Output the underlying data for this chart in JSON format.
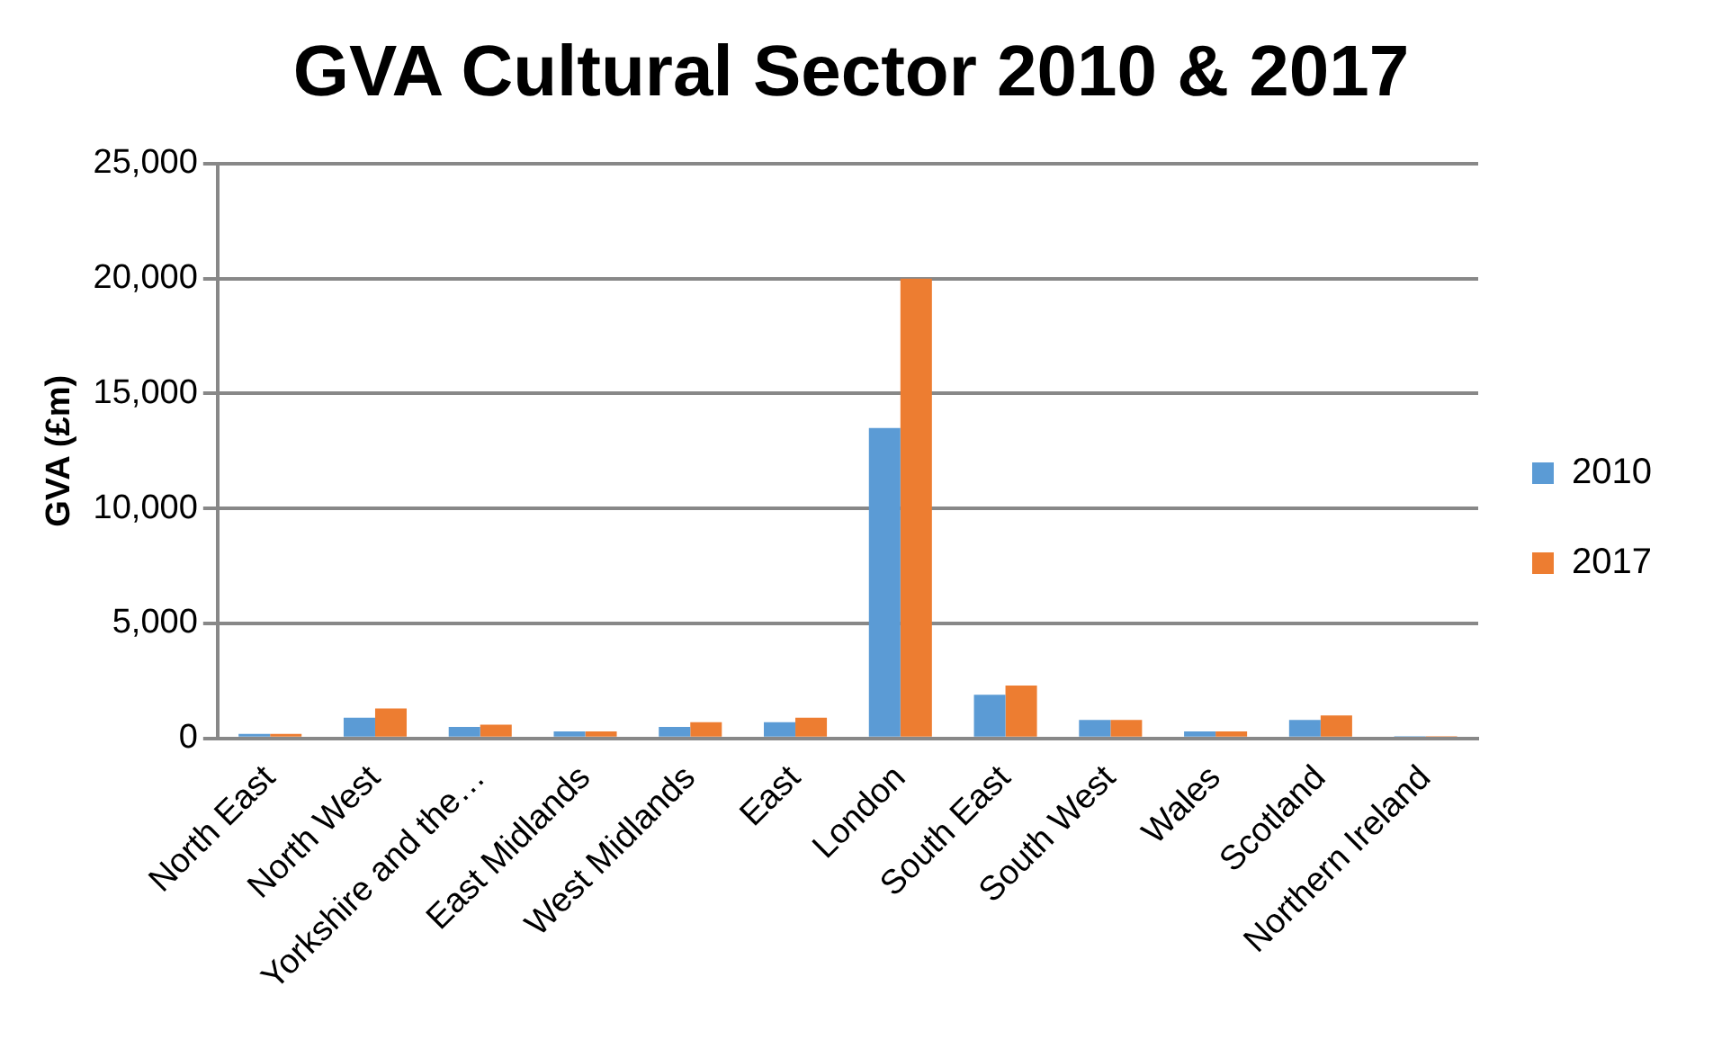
{
  "chart_data": {
    "type": "bar",
    "title": "GVA Cultural Sector 2010 & 2017",
    "ylabel": "GVA (£m)",
    "categories": [
      "North East",
      "North West",
      "Yorkshire and the…",
      "East Midlands",
      "West Midlands",
      "East",
      "London",
      "South East",
      "South West",
      "Wales",
      "Scotland",
      "Northern Ireland"
    ],
    "series": [
      {
        "name": "2010",
        "color": "#5b9bd5",
        "values": [
          200,
          900,
          500,
          300,
          500,
          700,
          13500,
          1900,
          800,
          300,
          800,
          100
        ]
      },
      {
        "name": "2017",
        "color": "#ed7d31",
        "values": [
          200,
          1300,
          600,
          300,
          700,
          900,
          20000,
          2300,
          800,
          300,
          1000,
          100
        ]
      }
    ],
    "ylim": [
      0,
      25000
    ],
    "yticks": [
      {
        "value": 0,
        "label": "0"
      },
      {
        "value": 5000,
        "label": "5,000"
      },
      {
        "value": 10000,
        "label": "10,000"
      },
      {
        "value": 15000,
        "label": "15,000"
      },
      {
        "value": 20000,
        "label": "20,000"
      },
      {
        "value": 25000,
        "label": "25,000"
      }
    ],
    "grid": "y",
    "legend": "right"
  }
}
